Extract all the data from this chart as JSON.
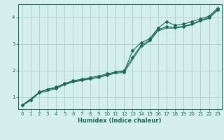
{
  "xlabel": "Humidex (Indice chaleur)",
  "ylabel": "",
  "background_color": "#d4efec",
  "grid_color": "#a8cfc9",
  "line_color": "#1a6b5a",
  "xlim": [
    -0.5,
    23.5
  ],
  "ylim": [
    0.55,
    4.5
  ],
  "xticks": [
    0,
    1,
    2,
    3,
    4,
    5,
    6,
    7,
    8,
    9,
    10,
    11,
    12,
    13,
    14,
    15,
    16,
    17,
    18,
    19,
    20,
    21,
    22,
    23
  ],
  "yticks": [
    1,
    2,
    3,
    4
  ],
  "line1_x": [
    0,
    1,
    2,
    3,
    4,
    5,
    6,
    7,
    8,
    9,
    10,
    11,
    12,
    13,
    14,
    15,
    16,
    17,
    18,
    19,
    20,
    21,
    22,
    23
  ],
  "line1_y": [
    0.7,
    0.9,
    1.2,
    1.3,
    1.35,
    1.5,
    1.6,
    1.65,
    1.7,
    1.75,
    1.85,
    1.95,
    1.95,
    2.75,
    3.05,
    3.2,
    3.6,
    3.85,
    3.7,
    3.75,
    3.85,
    3.95,
    4.05,
    4.35
  ],
  "line2_x": [
    0,
    2,
    3,
    4,
    5,
    6,
    7,
    8,
    9,
    10,
    11,
    12,
    13,
    14,
    15,
    16,
    17,
    18,
    19,
    20,
    21,
    22,
    23
  ],
  "line2_y": [
    0.7,
    1.18,
    1.3,
    1.38,
    1.52,
    1.62,
    1.68,
    1.74,
    1.8,
    1.88,
    1.95,
    2.0,
    2.5,
    2.95,
    3.15,
    3.55,
    3.65,
    3.62,
    3.67,
    3.75,
    3.9,
    4.0,
    4.3
  ],
  "line3_x": [
    0,
    1,
    2,
    3,
    4,
    5,
    6,
    7,
    8,
    9,
    10,
    11,
    12,
    13,
    14,
    15,
    16,
    17,
    18,
    19,
    20,
    21,
    22,
    23
  ],
  "line3_y": [
    0.68,
    0.88,
    1.16,
    1.24,
    1.32,
    1.48,
    1.57,
    1.63,
    1.69,
    1.74,
    1.83,
    1.9,
    1.93,
    2.42,
    2.9,
    3.1,
    3.5,
    3.6,
    3.6,
    3.65,
    3.73,
    3.87,
    3.97,
    4.27
  ]
}
